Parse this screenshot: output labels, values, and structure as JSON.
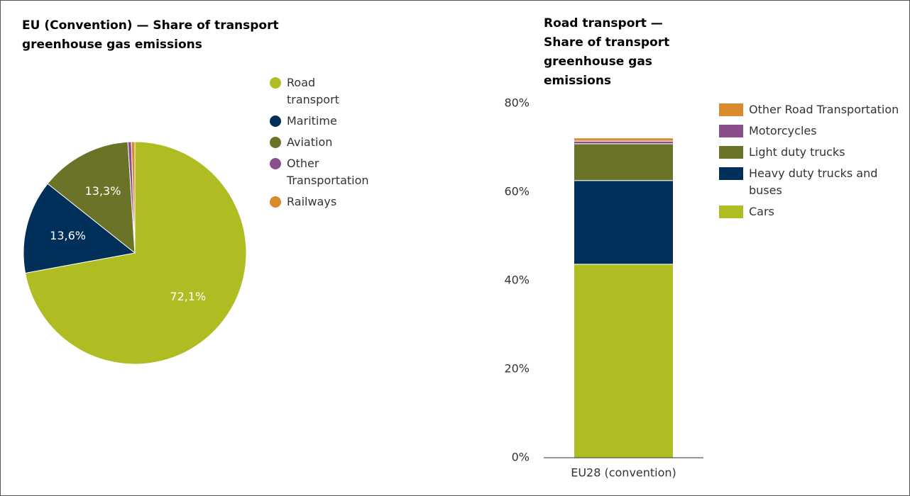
{
  "chart_data": [
    {
      "type": "pie",
      "title": "EU (Convention) — Share of transport greenhouse gas emissions",
      "categories": [
        "Road transport",
        "Maritime",
        "Aviation",
        "Other Transportation",
        "Railways"
      ],
      "values": [
        72.1,
        13.6,
        13.3,
        0.5,
        0.5
      ],
      "value_labels": [
        "72,1%",
        "13,6%",
        "13,3%",
        null,
        null
      ],
      "colors": [
        "#afbd22",
        "#00305a",
        "#6b7328",
        "#8b4e8c",
        "#d98a2b"
      ]
    },
    {
      "type": "bar",
      "stacked": true,
      "title": "Road transport — Share of transport greenhouse gas emissions",
      "categories": [
        "EU28 (convention)"
      ],
      "series": [
        {
          "name": "Cars",
          "color": "#afbd22",
          "values": [
            43.7
          ]
        },
        {
          "name": "Heavy duty trucks and buses",
          "color": "#00305a",
          "values": [
            18.9
          ]
        },
        {
          "name": "Light duty trucks",
          "color": "#6b7328",
          "values": [
            8.3
          ]
        },
        {
          "name": "Motorcycles",
          "color": "#8b4e8c",
          "values": [
            0.6
          ]
        },
        {
          "name": "Other Road Transportation",
          "color": "#d98a2b",
          "values": [
            0.7
          ]
        }
      ],
      "ylim": [
        0,
        80
      ],
      "yticks": [
        {
          "value": 0,
          "label": "0%"
        },
        {
          "value": 20,
          "label": "20%"
        },
        {
          "value": 40,
          "label": "40%"
        },
        {
          "value": 60,
          "label": "60%"
        },
        {
          "value": 80,
          "label": "80%"
        }
      ],
      "grid": false
    }
  ]
}
